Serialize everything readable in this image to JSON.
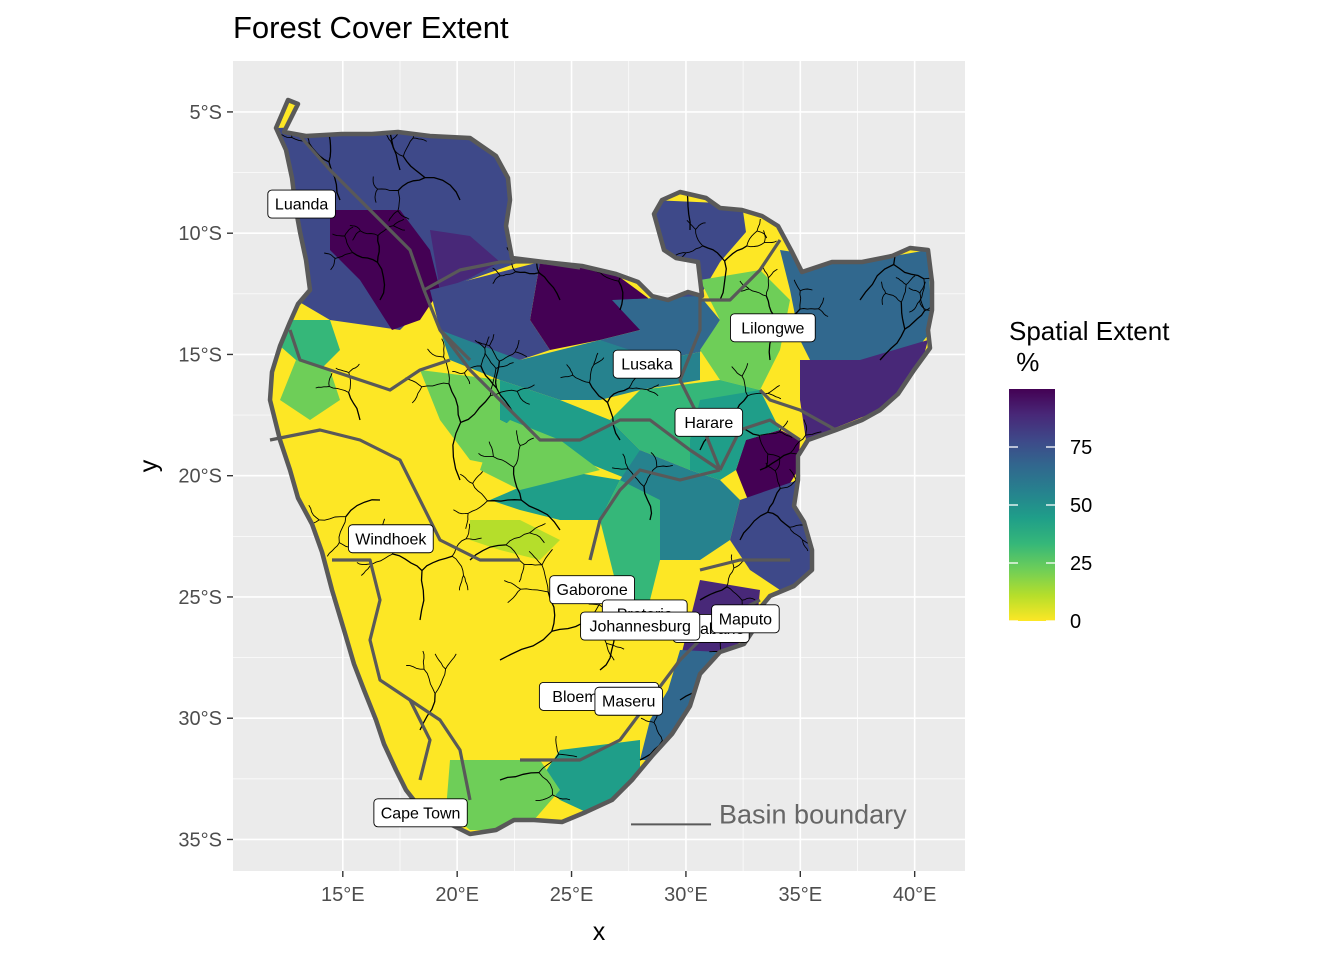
{
  "title": "Forest Cover Extent",
  "axes": {
    "x_label": "x",
    "y_label": "y",
    "x_ticks": [
      {
        "value": 15,
        "label": "15°E"
      },
      {
        "value": 20,
        "label": "20°E"
      },
      {
        "value": 25,
        "label": "25°E"
      },
      {
        "value": 30,
        "label": "30°E"
      },
      {
        "value": 35,
        "label": "35°E"
      },
      {
        "value": 40,
        "label": "40°E"
      }
    ],
    "y_ticks": [
      {
        "value": -5,
        "label": "5°S"
      },
      {
        "value": -10,
        "label": "10°S"
      },
      {
        "value": -15,
        "label": "15°S"
      },
      {
        "value": -20,
        "label": "20°S"
      },
      {
        "value": -25,
        "label": "25°S"
      },
      {
        "value": -30,
        "label": "30°S"
      },
      {
        "value": -35,
        "label": "35°S"
      }
    ],
    "x_range": [
      10.2,
      42.2
    ],
    "y_range": [
      -36.3,
      -2.9
    ]
  },
  "legend": {
    "title_line1": "Spatial Extent",
    "title_line2": " %",
    "ticks": [
      {
        "value": 0,
        "label": "0"
      },
      {
        "value": 25,
        "label": "25"
      },
      {
        "value": 50,
        "label": "50"
      },
      {
        "value": 75,
        "label": "75"
      }
    ],
    "range": [
      0,
      100
    ],
    "palette": [
      "#FDE725",
      "#B5DE2B",
      "#6ECE58",
      "#35B779",
      "#1F9E89",
      "#26828E",
      "#31688E",
      "#3E4989",
      "#482878",
      "#440154"
    ]
  },
  "annotation": {
    "text": "Basin boundary",
    "lon": 27.6,
    "lat": -33.8
  },
  "cities": [
    {
      "name": "Luanda",
      "lon": 13.2,
      "lat": -8.8
    },
    {
      "name": "Lilongwe",
      "lon": 33.8,
      "lat": -13.9
    },
    {
      "name": "Lusaka",
      "lon": 28.3,
      "lat": -15.4
    },
    {
      "name": "Harare",
      "lon": 31.0,
      "lat": -17.8
    },
    {
      "name": "Windhoek",
      "lon": 17.1,
      "lat": -22.6
    },
    {
      "name": "Gaborone",
      "lon": 25.9,
      "lat": -24.7
    },
    {
      "name": "Pretoria",
      "lon": 28.2,
      "lat": -25.7
    },
    {
      "name": "Mbabane",
      "lon": 31.1,
      "lat": -26.3
    },
    {
      "name": "Maputo",
      "lon": 32.6,
      "lat": -25.9
    },
    {
      "name": "Johannesburg",
      "lon": 28.0,
      "lat": -26.2
    },
    {
      "name": "Bloemfontein",
      "lon": 26.2,
      "lat": -29.1
    },
    {
      "name": "Maseru",
      "lon": 27.5,
      "lat": -29.3
    },
    {
      "name": "Cape Town",
      "lon": 18.4,
      "lat": -33.9
    }
  ],
  "colors": {
    "panel_background": "#EBEBEB",
    "grid_line": "#FFFFFF",
    "basin_boundary": "#595959",
    "river": "#000000",
    "label_fill": "#FFFFFF",
    "annotation_text": "#666666"
  }
}
